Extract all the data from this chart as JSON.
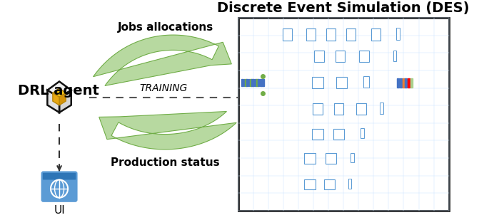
{
  "title_des": "Discrete Event Simulation (DES)",
  "label_jobs": "Jobs allocations",
  "label_prod": "Production status",
  "label_training": "TRAINING",
  "label_drl": "DRL agent",
  "label_ui": "UI",
  "arrow_color": "#b7d9a0",
  "arrow_color_dark": "#70ad47",
  "dashed_color": "#404040",
  "des_box_color": "#1a1a1a",
  "grid_color": "#cce5ff",
  "text_color": "#000000",
  "ui_box_color": "#5b9bd5",
  "ui_bar_color": "#2e75b6",
  "title_fontsize": 14,
  "label_fontsize": 11,
  "training_fontsize": 10,
  "drl_fontsize": 14
}
